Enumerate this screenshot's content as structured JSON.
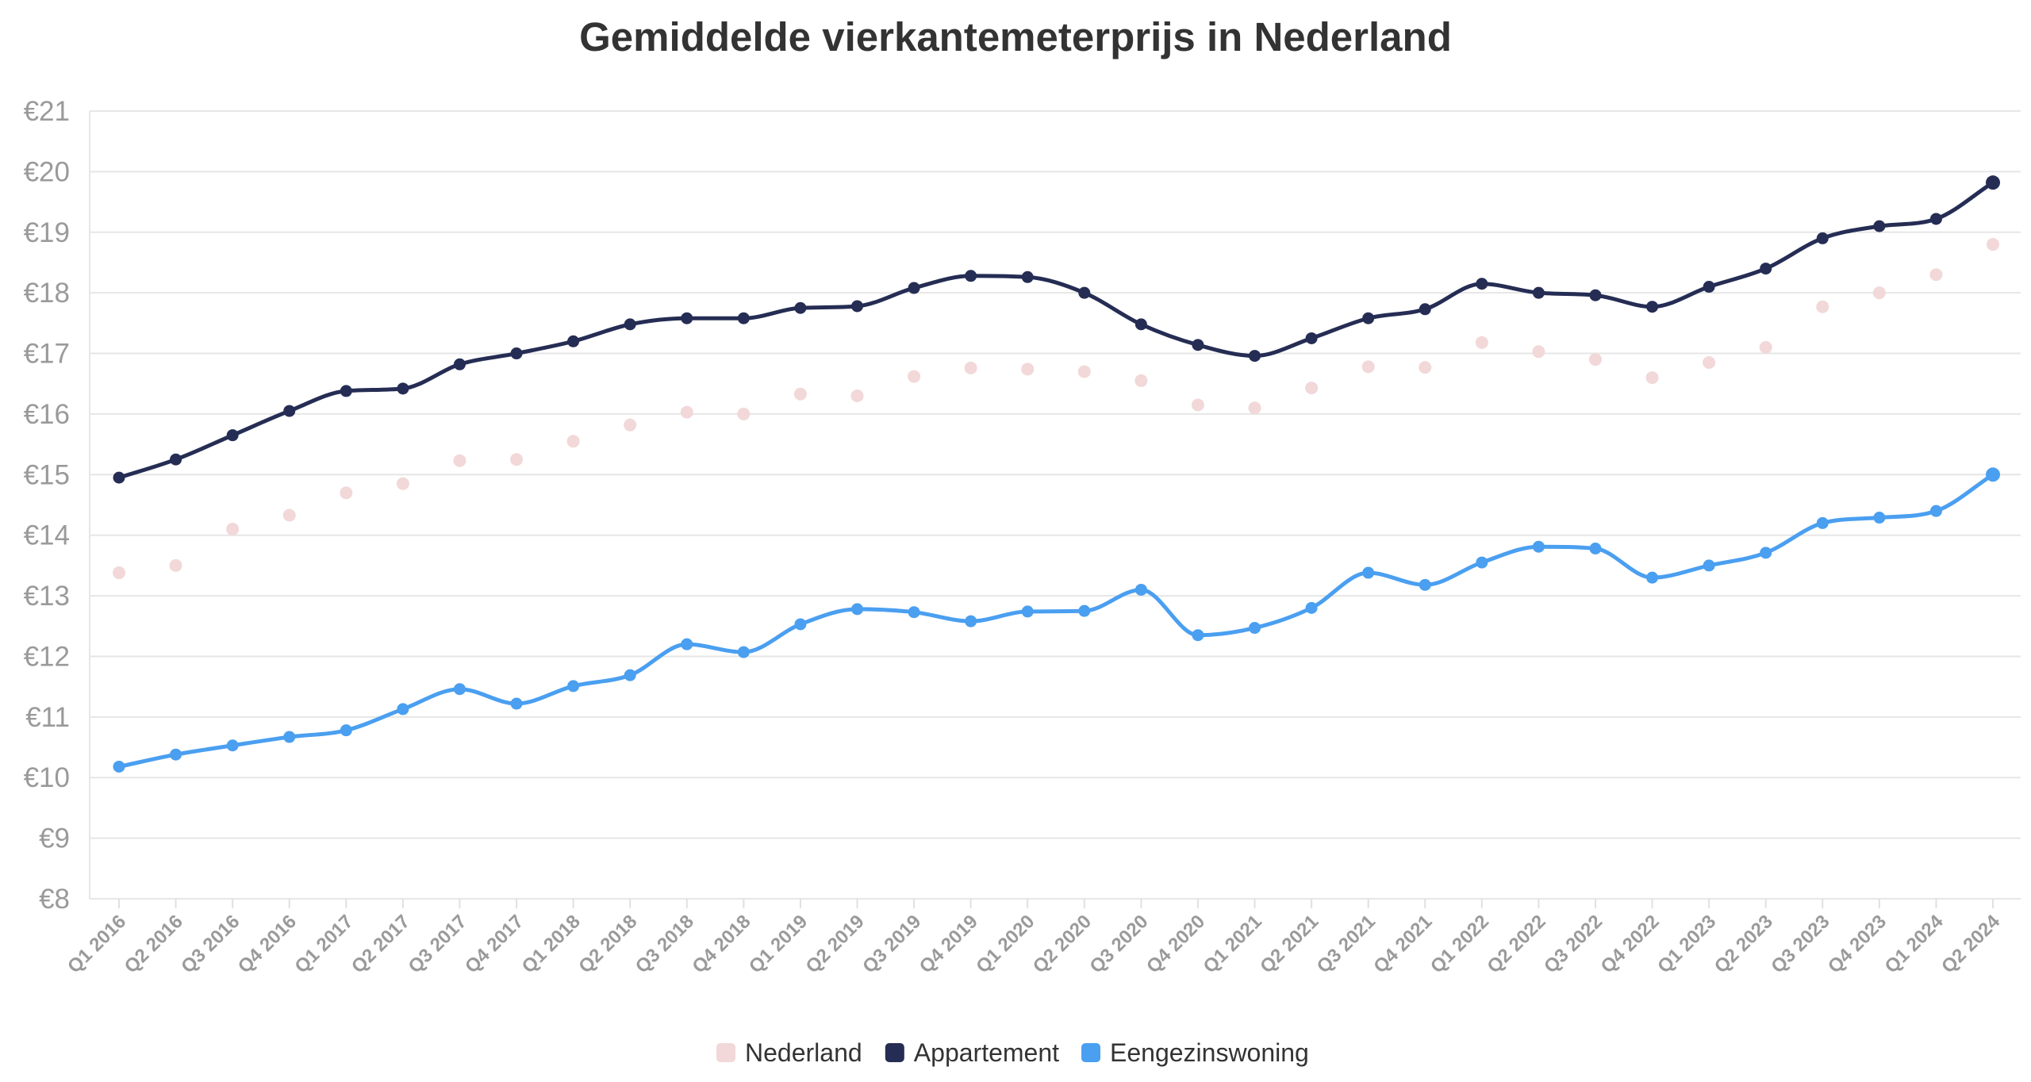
{
  "chart_data": {
    "type": "line",
    "title": "Gemiddelde vierkantemeterprijs in Nederland",
    "xlabel": "",
    "ylabel": "",
    "y_prefix": "€",
    "ylim": [
      8,
      21
    ],
    "yticks": [
      8,
      9,
      10,
      11,
      12,
      13,
      14,
      15,
      16,
      17,
      18,
      19,
      20,
      21
    ],
    "grid": true,
    "legend_position": "bottom-center",
    "categories": [
      "Q1 2016",
      "Q2 2016",
      "Q3 2016",
      "Q4 2016",
      "Q1 2017",
      "Q2 2017",
      "Q3 2017",
      "Q4 2017",
      "Q1 2018",
      "Q2 2018",
      "Q3 2018",
      "Q4 2018",
      "Q1 2019",
      "Q2 2019",
      "Q3 2019",
      "Q4 2019",
      "Q1 2020",
      "Q2 2020",
      "Q3 2020",
      "Q4 2020",
      "Q1 2021",
      "Q2 2021",
      "Q3 2021",
      "Q4 2021",
      "Q1 2022",
      "Q2 2022",
      "Q3 2022",
      "Q4 2022",
      "Q1 2023",
      "Q2 2023",
      "Q3 2023",
      "Q4 2023",
      "Q1 2024",
      "Q2 2024"
    ],
    "series": [
      {
        "name": "Nederland",
        "color": "#f2d8d8",
        "style": "markers",
        "values": [
          13.38,
          13.5,
          14.1,
          14.33,
          14.7,
          14.85,
          15.23,
          15.25,
          15.55,
          15.82,
          16.03,
          16.0,
          16.33,
          16.3,
          16.62,
          16.76,
          16.74,
          16.7,
          16.55,
          16.15,
          16.1,
          16.43,
          16.78,
          16.77,
          17.18,
          17.03,
          16.9,
          16.6,
          16.85,
          17.1,
          17.77,
          18.0,
          18.3,
          18.8
        ]
      },
      {
        "name": "Appartement",
        "color": "#252d54",
        "style": "line",
        "values": [
          14.95,
          15.25,
          15.65,
          16.05,
          16.38,
          16.42,
          16.82,
          17.0,
          17.2,
          17.48,
          17.58,
          17.58,
          17.75,
          17.78,
          18.08,
          18.28,
          18.26,
          18.0,
          17.48,
          17.14,
          16.96,
          17.25,
          17.58,
          17.73,
          18.15,
          18.0,
          17.96,
          17.77,
          18.1,
          18.4,
          18.9,
          19.1,
          19.22,
          19.82
        ]
      },
      {
        "name": "Eengezinswoning",
        "color": "#4a9ff0",
        "style": "line",
        "values": [
          10.18,
          10.38,
          10.53,
          10.67,
          10.78,
          11.13,
          11.46,
          11.22,
          11.51,
          11.69,
          12.2,
          12.07,
          12.53,
          12.78,
          12.73,
          12.58,
          12.74,
          12.75,
          13.1,
          12.35,
          12.47,
          12.8,
          13.38,
          13.18,
          13.55,
          13.81,
          13.78,
          13.3,
          13.5,
          13.71,
          14.2,
          14.29,
          14.4,
          15.0
        ]
      }
    ]
  }
}
